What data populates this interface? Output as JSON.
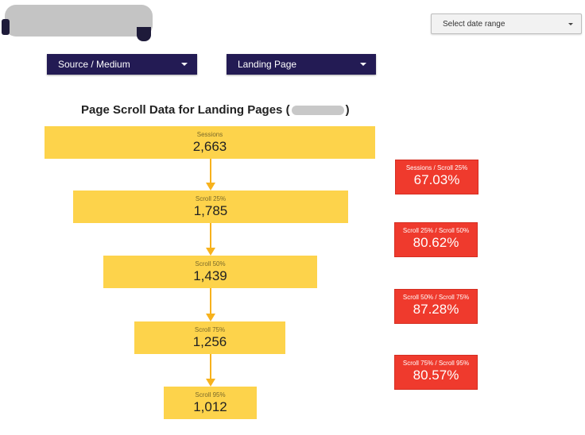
{
  "header": {
    "date_range_label": "Select date range"
  },
  "filters": {
    "source_medium_label": "Source / Medium",
    "landing_page_label": "Landing Page"
  },
  "chart": {
    "title_prefix": "Page Scroll Data for Landing Pages (",
    "title_suffix": ")"
  },
  "funnel": {
    "steps": [
      {
        "label": "Sessions",
        "value": "2,663"
      },
      {
        "label": "Scroll 25%",
        "value": "1,785"
      },
      {
        "label": "Scroll 50%",
        "value": "1,439"
      },
      {
        "label": "Scroll 75%",
        "value": "1,256"
      },
      {
        "label": "Scroll 95%",
        "value": "1,012"
      }
    ],
    "rates": [
      {
        "label": "Sessions / Scroll 25%",
        "value": "67.03%"
      },
      {
        "label": "Scroll 25% / Scroll 50%",
        "value": "80.62%"
      },
      {
        "label": "Scroll 50% / Scroll 75%",
        "value": "87.28%"
      },
      {
        "label": "Scroll 75% / Scroll 95%",
        "value": "80.57%"
      }
    ]
  },
  "colors": {
    "filter_bg": "#231b54",
    "step_fill": "#fdd34b",
    "arrow": "#f7b21d",
    "rate_fill": "#ef3a2d"
  },
  "icons": {
    "dropdown": "chevron-down-icon",
    "arrow": "arrow-down-icon"
  }
}
